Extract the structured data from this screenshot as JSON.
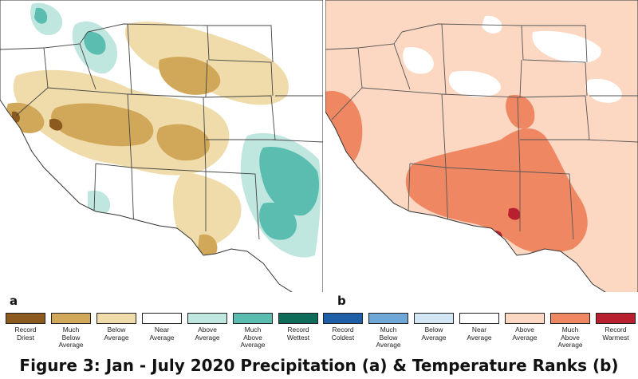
{
  "panels": [
    {
      "letter": "a",
      "theme": "precipitation"
    },
    {
      "letter": "b",
      "theme": "temperature"
    }
  ],
  "legend_precip": [
    {
      "label": "Record\nDriest",
      "color": "#8c5a1e"
    },
    {
      "label": "Much\nBelow\nAverage",
      "color": "#d1a85a"
    },
    {
      "label": "Below\nAverage",
      "color": "#f0dcaa"
    },
    {
      "label": "Near\nAverage",
      "color": "#ffffff"
    },
    {
      "label": "Above\nAverage",
      "color": "#bfe6df"
    },
    {
      "label": "Much\nAbove\nAverage",
      "color": "#5bbdb0"
    },
    {
      "label": "Record\nWettest",
      "color": "#0f6b5a"
    }
  ],
  "legend_temp": [
    {
      "label": "Record\nColdest",
      "color": "#1f5fa8"
    },
    {
      "label": "Much\nBelow\nAverage",
      "color": "#6fa8d8"
    },
    {
      "label": "Below\nAverage",
      "color": "#d2e5f3"
    },
    {
      "label": "Near\nAverage",
      "color": "#ffffff"
    },
    {
      "label": "Above\nAverage",
      "color": "#fcd7c2"
    },
    {
      "label": "Much\nAbove\nAverage",
      "color": "#ef8862"
    },
    {
      "label": "Record\nWarmest",
      "color": "#b8202f"
    }
  ],
  "caption": "Figure 3: Jan - July 2020 Precipitation (a) & Temperature Ranks (b)"
}
